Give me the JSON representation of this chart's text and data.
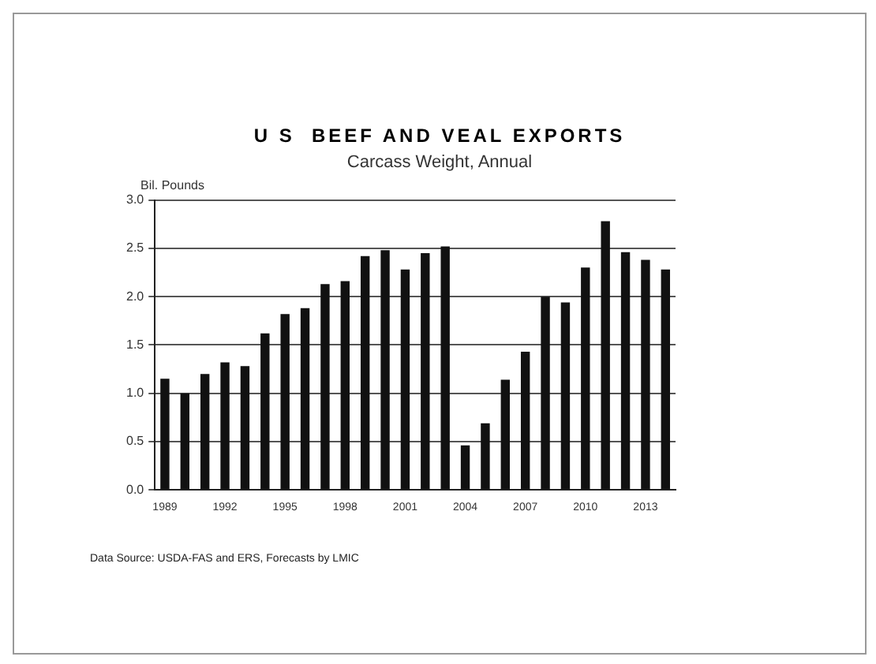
{
  "chart_data": {
    "type": "bar",
    "title": "U S  BEEF AND VEAL EXPORTS",
    "subtitle": "Carcass Weight, Annual",
    "ylabel": "Bil. Pounds",
    "categories": [
      "1989",
      null,
      null,
      "1992",
      null,
      null,
      "1995",
      null,
      null,
      "1998",
      null,
      null,
      "2001",
      null,
      null,
      "2004",
      null,
      null,
      "2007",
      null,
      null,
      "2010",
      null,
      null,
      "2013",
      null
    ],
    "values": [
      1.15,
      1.0,
      1.2,
      1.32,
      1.28,
      1.62,
      1.82,
      1.88,
      2.13,
      2.16,
      2.42,
      2.48,
      2.28,
      2.45,
      2.52,
      0.46,
      0.69,
      1.14,
      1.43,
      2.0,
      1.94,
      2.3,
      2.78,
      2.46,
      2.38,
      2.28
    ],
    "color": "#111111",
    "ylim": [
      0,
      3
    ],
    "yticks": [
      {
        "value": 0,
        "label": "0.0"
      },
      {
        "value": 0.5,
        "label": "0.5"
      },
      {
        "value": 1,
        "label": "1.0"
      },
      {
        "value": 1.5,
        "label": "1.5"
      },
      {
        "value": 2,
        "label": "2.0"
      },
      {
        "value": 2.5,
        "label": "2.5"
      },
      {
        "value": 3,
        "label": "3.0"
      }
    ],
    "grid": "y",
    "legend": false,
    "annotations": [
      "Data Source: USDA-FAS and ERS, Forecasts by LMIC"
    ]
  }
}
